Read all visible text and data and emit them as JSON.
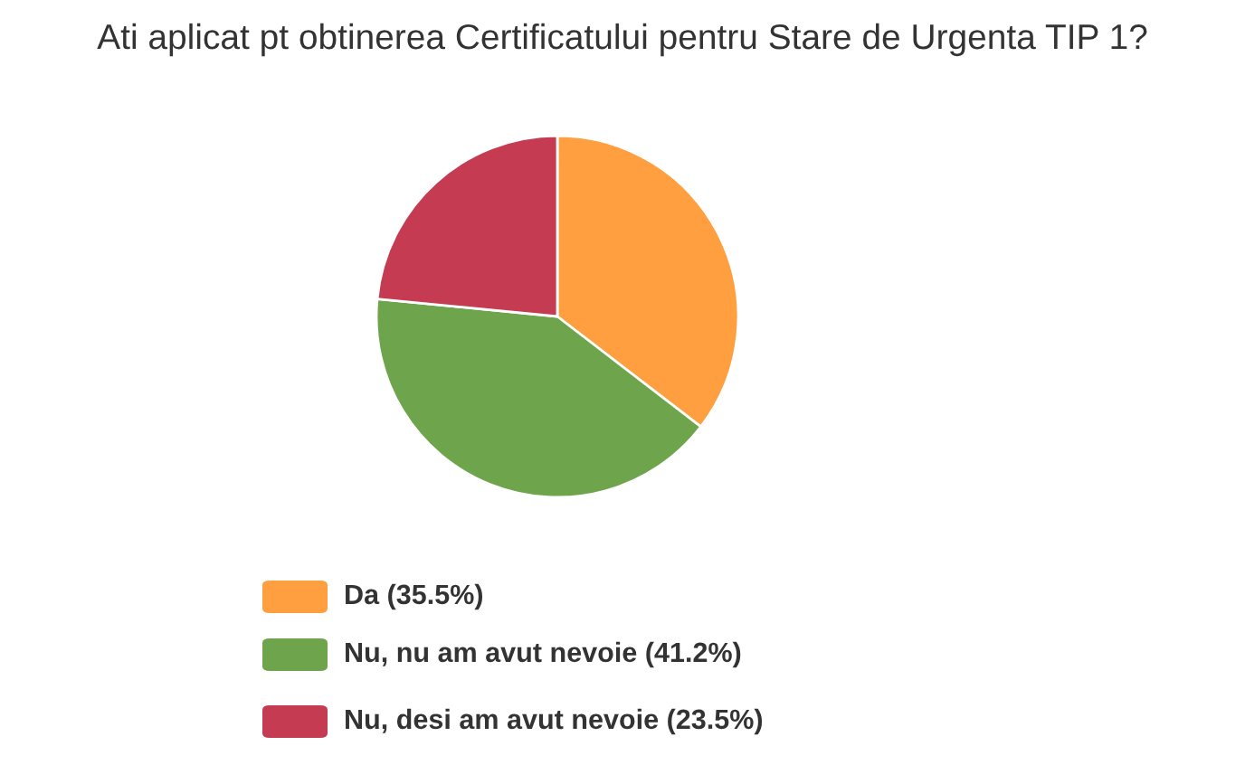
{
  "chart_data": {
    "type": "pie",
    "title": "Ati aplicat pt obtinerea Certificatului pentru Stare de Urgenta TIP 1?",
    "categories": [
      "Da (35.5%)",
      "Nu, nu am avut nevoie (41.2%)",
      "Nu, desi am avut nevoie (23.5%)"
    ],
    "values": [
      35.5,
      41.2,
      23.5
    ],
    "colors": [
      "#ff9f40",
      "#6ea54c",
      "#c53c52"
    ],
    "legend": "bottom"
  }
}
